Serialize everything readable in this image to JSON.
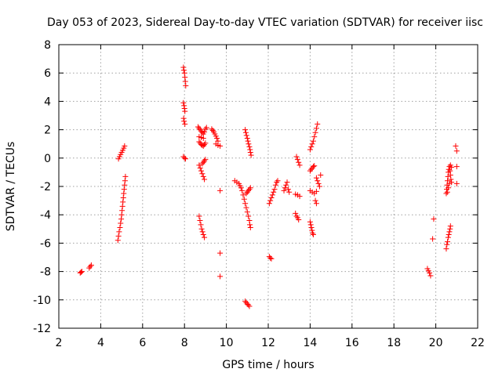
{
  "chart_data": {
    "type": "scatter",
    "title": "Day 053 of 2023, Sidereal Day-to-day VTEC variation (SDTVAR) for receiver iisc",
    "xlabel": "GPS time / hours",
    "ylabel": "SDTVAR / TECUs",
    "xlim": [
      2,
      22
    ],
    "ylim": [
      -12,
      8
    ],
    "xticks": [
      2,
      4,
      6,
      8,
      10,
      12,
      14,
      16,
      18,
      20,
      22
    ],
    "yticks": [
      -12,
      -10,
      -8,
      -6,
      -4,
      -2,
      0,
      2,
      4,
      6,
      8
    ],
    "grid": true,
    "marker": "plus",
    "marker_color": "#ff0000",
    "series": [
      {
        "name": "SDTVAR",
        "points": [
          [
            3.02,
            -8.1
          ],
          [
            3.06,
            -8.05
          ],
          [
            3.1,
            -8.0
          ],
          [
            3.45,
            -7.75
          ],
          [
            3.5,
            -7.65
          ],
          [
            3.55,
            -7.55
          ],
          [
            4.82,
            -5.8
          ],
          [
            4.85,
            -5.5
          ],
          [
            4.88,
            -5.2
          ],
          [
            4.92,
            -4.9
          ],
          [
            4.95,
            -4.6
          ],
          [
            4.98,
            -4.3
          ],
          [
            5.0,
            -4.0
          ],
          [
            5.02,
            -3.7
          ],
          [
            5.04,
            -3.4
          ],
          [
            5.06,
            -3.1
          ],
          [
            5.08,
            -2.8
          ],
          [
            5.1,
            -2.5
          ],
          [
            5.12,
            -2.2
          ],
          [
            5.14,
            -1.9
          ],
          [
            5.16,
            -1.6
          ],
          [
            5.18,
            -1.3
          ],
          [
            4.85,
            -0.05
          ],
          [
            4.9,
            0.1
          ],
          [
            4.95,
            0.25
          ],
          [
            5.0,
            0.4
          ],
          [
            5.05,
            0.55
          ],
          [
            5.1,
            0.7
          ],
          [
            5.14,
            0.85
          ],
          [
            7.95,
            6.4
          ],
          [
            7.97,
            6.2
          ],
          [
            8.0,
            6.0
          ],
          [
            8.02,
            5.7
          ],
          [
            8.04,
            5.4
          ],
          [
            8.06,
            5.1
          ],
          [
            7.95,
            3.9
          ],
          [
            7.98,
            3.7
          ],
          [
            8.0,
            3.5
          ],
          [
            8.02,
            3.3
          ],
          [
            7.96,
            2.8
          ],
          [
            7.98,
            2.6
          ],
          [
            8.02,
            2.4
          ],
          [
            7.95,
            0.1
          ],
          [
            8.0,
            0.0
          ],
          [
            8.05,
            -0.05
          ],
          [
            8.65,
            2.2
          ],
          [
            8.7,
            2.1
          ],
          [
            8.75,
            2.0
          ],
          [
            8.8,
            1.9
          ],
          [
            8.85,
            1.8
          ],
          [
            8.9,
            1.7
          ],
          [
            8.95,
            1.85
          ],
          [
            9.0,
            2.05
          ],
          [
            9.05,
            2.15
          ],
          [
            8.7,
            1.5
          ],
          [
            8.8,
            1.45
          ],
          [
            8.9,
            1.4
          ],
          [
            8.7,
            1.15
          ],
          [
            8.75,
            1.05
          ],
          [
            8.8,
            0.95
          ],
          [
            8.85,
            0.9
          ],
          [
            8.9,
            0.85
          ],
          [
            8.95,
            0.95
          ],
          [
            9.0,
            1.05
          ],
          [
            8.7,
            -0.5
          ],
          [
            8.75,
            -0.7
          ],
          [
            8.8,
            -0.9
          ],
          [
            8.85,
            -1.1
          ],
          [
            8.9,
            -1.3
          ],
          [
            8.95,
            -1.5
          ],
          [
            8.85,
            -0.4
          ],
          [
            8.9,
            -0.3
          ],
          [
            8.95,
            -0.2
          ],
          [
            9.0,
            -0.1
          ],
          [
            8.7,
            -4.1
          ],
          [
            8.74,
            -4.4
          ],
          [
            8.78,
            -4.7
          ],
          [
            8.82,
            -5.0
          ],
          [
            8.86,
            -5.2
          ],
          [
            8.9,
            -5.4
          ],
          [
            8.95,
            -5.6
          ],
          [
            9.3,
            2.05
          ],
          [
            9.35,
            1.95
          ],
          [
            9.4,
            1.85
          ],
          [
            9.45,
            1.7
          ],
          [
            9.5,
            1.55
          ],
          [
            9.55,
            1.4
          ],
          [
            9.6,
            1.2
          ],
          [
            9.5,
            1.0
          ],
          [
            9.6,
            0.9
          ],
          [
            9.7,
            0.85
          ],
          [
            9.7,
            -2.3
          ],
          [
            9.7,
            -6.7
          ],
          [
            9.7,
            -8.35
          ],
          [
            10.4,
            -1.6
          ],
          [
            10.5,
            -1.7
          ],
          [
            10.6,
            -1.8
          ],
          [
            10.65,
            -1.95
          ],
          [
            10.7,
            -2.1
          ],
          [
            10.75,
            -2.3
          ],
          [
            10.8,
            -2.6
          ],
          [
            10.85,
            -2.9
          ],
          [
            10.9,
            -3.2
          ],
          [
            10.95,
            -3.5
          ],
          [
            11.0,
            -3.8
          ],
          [
            11.05,
            -4.1
          ],
          [
            11.1,
            -4.4
          ],
          [
            11.12,
            -4.7
          ],
          [
            11.15,
            -4.9
          ],
          [
            10.9,
            2.0
          ],
          [
            10.93,
            1.8
          ],
          [
            10.96,
            1.6
          ],
          [
            11.0,
            1.4
          ],
          [
            11.03,
            1.2
          ],
          [
            11.06,
            1.0
          ],
          [
            11.1,
            0.8
          ],
          [
            11.13,
            0.6
          ],
          [
            11.15,
            0.4
          ],
          [
            11.18,
            0.2
          ],
          [
            10.95,
            -2.5
          ],
          [
            11.0,
            -2.4
          ],
          [
            11.05,
            -2.3
          ],
          [
            11.1,
            -2.2
          ],
          [
            11.15,
            -2.1
          ],
          [
            10.9,
            -10.1
          ],
          [
            10.95,
            -10.2
          ],
          [
            11.0,
            -10.3
          ],
          [
            11.05,
            -10.35
          ],
          [
            11.1,
            -10.45
          ],
          [
            12.05,
            -3.2
          ],
          [
            12.1,
            -3.0
          ],
          [
            12.15,
            -2.8
          ],
          [
            12.2,
            -2.6
          ],
          [
            12.25,
            -2.4
          ],
          [
            12.3,
            -2.2
          ],
          [
            12.35,
            -1.9
          ],
          [
            12.4,
            -1.7
          ],
          [
            12.45,
            -1.6
          ],
          [
            12.05,
            -6.95
          ],
          [
            12.1,
            -7.05
          ],
          [
            12.15,
            -7.1
          ],
          [
            12.75,
            -2.3
          ],
          [
            12.8,
            -2.1
          ],
          [
            12.85,
            -1.9
          ],
          [
            12.9,
            -1.7
          ],
          [
            12.95,
            -2.2
          ],
          [
            13.0,
            -2.4
          ],
          [
            13.35,
            0.1
          ],
          [
            13.4,
            -0.1
          ],
          [
            13.45,
            -0.3
          ],
          [
            13.5,
            -0.5
          ],
          [
            13.3,
            -2.55
          ],
          [
            13.4,
            -2.6
          ],
          [
            13.5,
            -2.7
          ],
          [
            13.3,
            -3.9
          ],
          [
            13.35,
            -4.1
          ],
          [
            13.4,
            -4.2
          ],
          [
            13.45,
            -4.35
          ],
          [
            14.0,
            0.6
          ],
          [
            14.05,
            0.8
          ],
          [
            14.1,
            1.0
          ],
          [
            14.15,
            1.2
          ],
          [
            14.2,
            1.5
          ],
          [
            14.25,
            1.8
          ],
          [
            14.3,
            2.1
          ],
          [
            14.35,
            2.4
          ],
          [
            14.0,
            -0.9
          ],
          [
            14.05,
            -0.8
          ],
          [
            14.1,
            -0.7
          ],
          [
            14.15,
            -0.6
          ],
          [
            14.2,
            -0.55
          ],
          [
            14.0,
            -2.3
          ],
          [
            14.1,
            -2.4
          ],
          [
            14.2,
            -2.5
          ],
          [
            14.3,
            -2.35
          ],
          [
            14.3,
            -1.4
          ],
          [
            14.35,
            -1.6
          ],
          [
            14.4,
            -1.8
          ],
          [
            14.45,
            -2.0
          ],
          [
            14.5,
            -1.2
          ],
          [
            14.25,
            -3.0
          ],
          [
            14.3,
            -3.2
          ],
          [
            14.0,
            -4.5
          ],
          [
            14.03,
            -4.7
          ],
          [
            14.06,
            -4.9
          ],
          [
            14.09,
            -5.1
          ],
          [
            14.12,
            -5.3
          ],
          [
            14.15,
            -5.4
          ],
          [
            19.6,
            -7.8
          ],
          [
            19.65,
            -7.95
          ],
          [
            19.7,
            -8.1
          ],
          [
            19.75,
            -8.3
          ],
          [
            19.9,
            -4.3
          ],
          [
            19.85,
            -5.7
          ],
          [
            20.5,
            -6.4
          ],
          [
            20.53,
            -6.1
          ],
          [
            20.56,
            -5.9
          ],
          [
            20.59,
            -5.6
          ],
          [
            20.62,
            -5.4
          ],
          [
            20.65,
            -5.2
          ],
          [
            20.68,
            -5.0
          ],
          [
            20.7,
            -4.8
          ],
          [
            20.5,
            -2.5
          ],
          [
            20.52,
            -2.2
          ],
          [
            20.54,
            -1.9
          ],
          [
            20.56,
            -1.6
          ],
          [
            20.58,
            -1.3
          ],
          [
            20.6,
            -1.0
          ],
          [
            20.62,
            -0.8
          ],
          [
            20.65,
            -0.6
          ],
          [
            20.68,
            -0.9
          ],
          [
            20.7,
            -1.2
          ],
          [
            20.72,
            -1.5
          ],
          [
            20.75,
            -1.7
          ],
          [
            20.55,
            -2.4
          ],
          [
            20.6,
            -2.1
          ],
          [
            20.65,
            -1.8
          ],
          [
            20.7,
            -0.5
          ],
          [
            20.75,
            -0.65
          ],
          [
            20.95,
            0.85
          ],
          [
            21.0,
            0.5
          ],
          [
            21.0,
            -1.8
          ],
          [
            21.0,
            -0.6
          ]
        ]
      }
    ]
  }
}
